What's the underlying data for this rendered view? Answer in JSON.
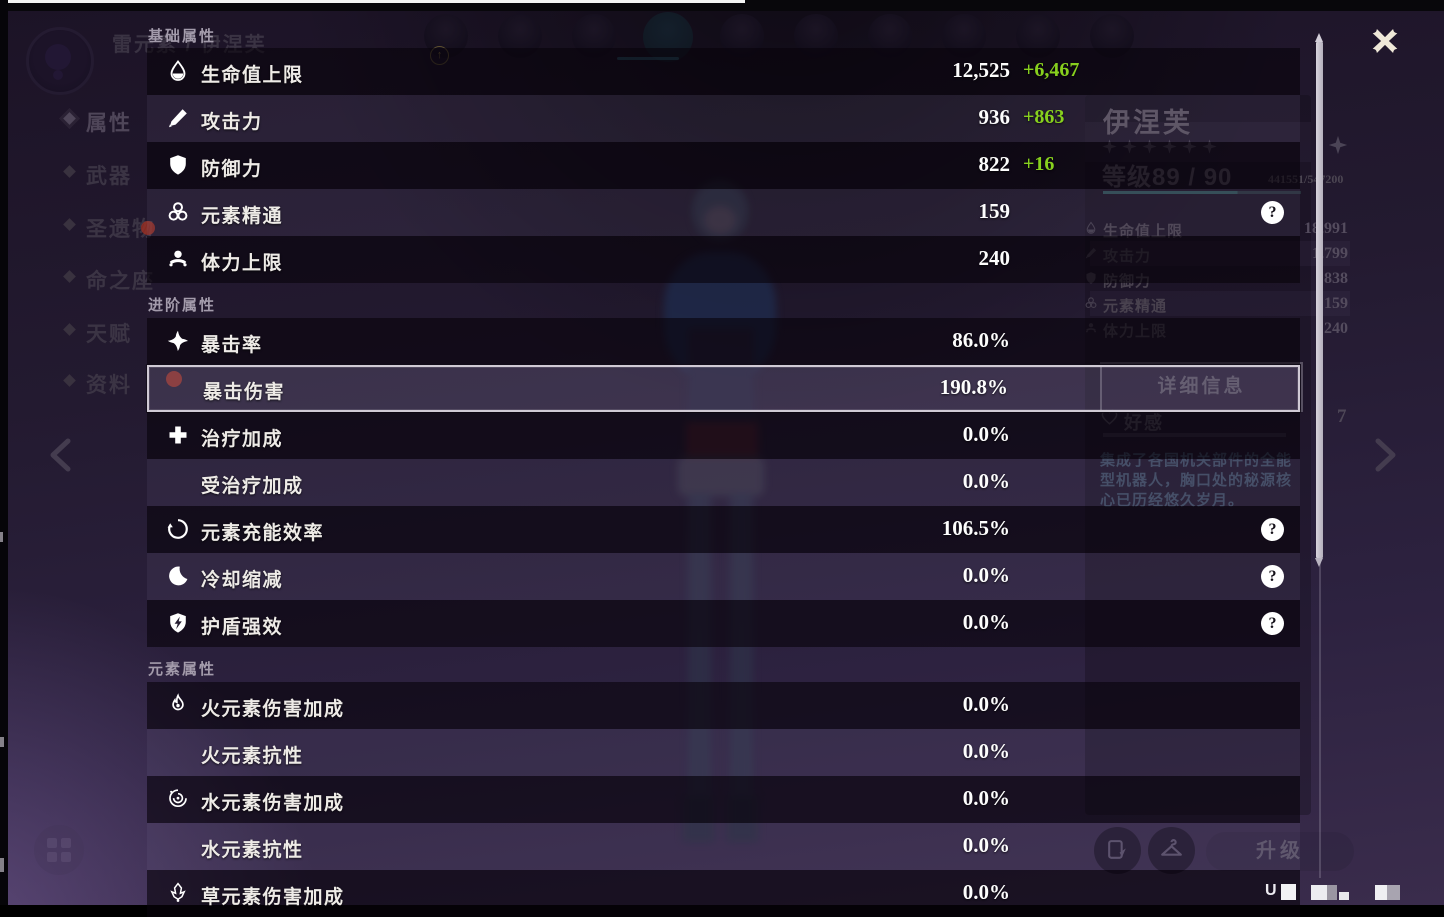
{
  "window": {
    "element_title": "雷元素 / 伊涅芙",
    "close_icon": "close"
  },
  "panel": {
    "sections": [
      {
        "title": "基础属性",
        "rows": [
          {
            "icon": "hp-icon",
            "label": "生命值上限",
            "value": "12,525",
            "bonus": "+6,467"
          },
          {
            "icon": "atk-icon",
            "label": "攻击力",
            "value": "936",
            "bonus": "+863"
          },
          {
            "icon": "def-icon",
            "label": "防御力",
            "value": "822",
            "bonus": "+16"
          },
          {
            "icon": "elemental-mastery-icon",
            "label": "元素精通",
            "value": "159",
            "help": true
          },
          {
            "icon": "stamina-icon",
            "label": "体力上限",
            "value": "240"
          }
        ]
      },
      {
        "title": "进阶属性",
        "rows": [
          {
            "icon": "crit-rate-icon",
            "label": "暴击率",
            "value": "86.0%"
          },
          {
            "icon": null,
            "label": "暴击伤害",
            "value": "190.8%",
            "highlighted": true
          },
          {
            "icon": "healing-bonus-icon",
            "label": "治疗加成",
            "value": "0.0%"
          },
          {
            "icon": null,
            "label": "受治疗加成",
            "value": "0.0%"
          },
          {
            "icon": "energy-recharge-icon",
            "label": "元素充能效率",
            "value": "106.5%",
            "help": true
          },
          {
            "icon": "cooldown-reduction-icon",
            "label": "冷却缩减",
            "value": "0.0%",
            "help": true
          },
          {
            "icon": "shield-strength-icon",
            "label": "护盾强效",
            "value": "0.0%",
            "help": true
          }
        ]
      },
      {
        "title": "元素属性",
        "rows": [
          {
            "icon": "pyro-icon",
            "label": "火元素伤害加成",
            "value": "0.0%"
          },
          {
            "icon": null,
            "label": "火元素抗性",
            "value": "0.0%"
          },
          {
            "icon": "hydro-icon",
            "label": "水元素伤害加成",
            "value": "0.0%"
          },
          {
            "icon": null,
            "label": "水元素抗性",
            "value": "0.0%"
          },
          {
            "icon": "dendro-icon",
            "label": "草元素伤害加成",
            "value": "0.0%"
          }
        ]
      }
    ],
    "help_glyph": "?"
  },
  "background": {
    "nav": [
      {
        "label": "属性",
        "key": "attributes",
        "selected": true
      },
      {
        "label": "武器",
        "key": "weapon"
      },
      {
        "label": "圣遗物",
        "key": "artifacts",
        "badge": true
      },
      {
        "label": "命之座",
        "key": "constellation"
      },
      {
        "label": "天赋",
        "key": "talents"
      },
      {
        "label": "资料",
        "key": "profile",
        "badge": true
      }
    ],
    "character_card": {
      "name": "伊涅芙",
      "rarity_stars": 6,
      "level": "等级89 / 90",
      "exp": "441551/547200",
      "stats": [
        {
          "icon": "hp-icon",
          "label": "生命值上限",
          "value": "18,991"
        },
        {
          "icon": "atk-icon",
          "label": "攻击力",
          "value": "1,799"
        },
        {
          "icon": "def-icon",
          "label": "防御力",
          "value": "838"
        },
        {
          "icon": "elemental-mastery-icon",
          "label": "元素精通",
          "value": "159"
        },
        {
          "icon": "stamina-icon",
          "label": "体力上限",
          "value": "240"
        }
      ],
      "details_button": "详细信息",
      "friendship_label": "好感",
      "friendship_level": "7",
      "description": "集成了各国机关部件的全能型机器人，胸口处的秘源核心已历经悠久岁月。"
    },
    "upgrade_button": "升级",
    "uid_prefix": "U"
  },
  "colors": {
    "bonus_green": "#87d01e",
    "value_white": "#fdfdfd",
    "highlight_border": "#d0cad5",
    "page_purple": "#3a2c4c"
  }
}
